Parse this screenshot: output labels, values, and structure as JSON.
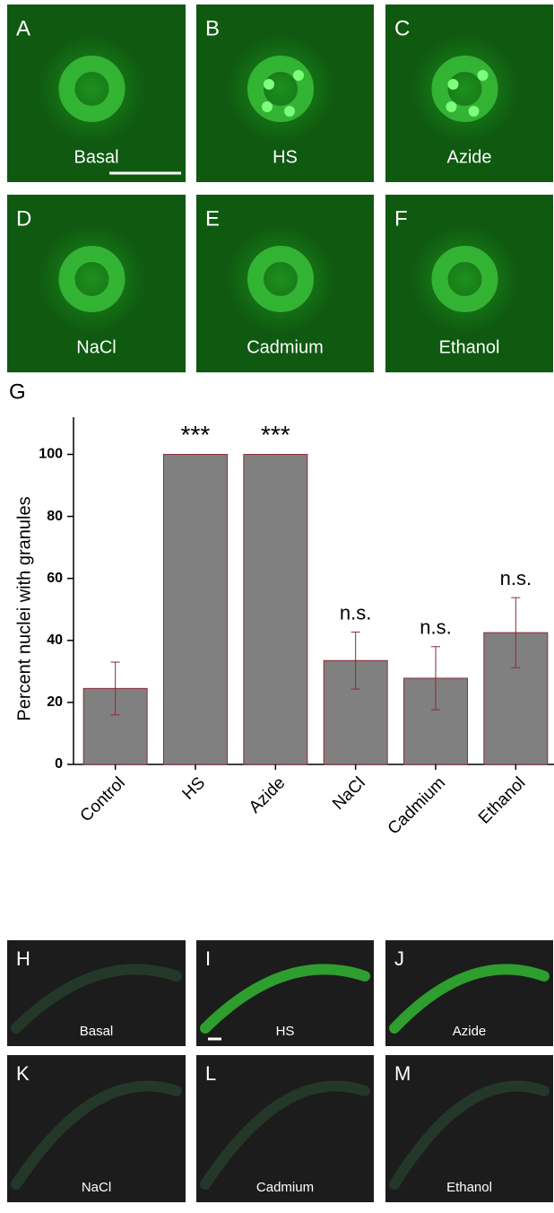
{
  "figure": {
    "chart_letter": "G",
    "panels_top": [
      {
        "letter": "A",
        "label": "Basal"
      },
      {
        "letter": "B",
        "label": "HS"
      },
      {
        "letter": "C",
        "label": "Azide"
      },
      {
        "letter": "D",
        "label": "NaCl"
      },
      {
        "letter": "E",
        "label": "Cadmium"
      },
      {
        "letter": "F",
        "label": "Ethanol"
      }
    ],
    "panels_bottom": [
      {
        "letter": "H",
        "label": "Basal"
      },
      {
        "letter": "I",
        "label": "HS"
      },
      {
        "letter": "J",
        "label": "Azide"
      },
      {
        "letter": "K",
        "label": "NaCl"
      },
      {
        "letter": "L",
        "label": "Cadmium"
      },
      {
        "letter": "M",
        "label": "Ethanol"
      }
    ]
  },
  "chart_data": {
    "type": "bar",
    "y_label": "Percent nuclei with granules",
    "categories": [
      "Control",
      "HS",
      "Azide",
      "NaCl",
      "Cadmium",
      "Ethanol"
    ],
    "values": [
      24.5,
      100,
      100,
      33.5,
      27.8,
      42.5
    ],
    "errors": [
      8.5,
      0,
      0,
      9.2,
      10.2,
      11.3
    ],
    "annotations": [
      null,
      "***",
      "***",
      "n.s.",
      "n.s.",
      "n.s."
    ],
    "color": "#808080",
    "error_color": "#8b2a3a",
    "ylim": [
      0,
      112
    ],
    "yticks": [
      0,
      20,
      40,
      60,
      80,
      100
    ]
  }
}
